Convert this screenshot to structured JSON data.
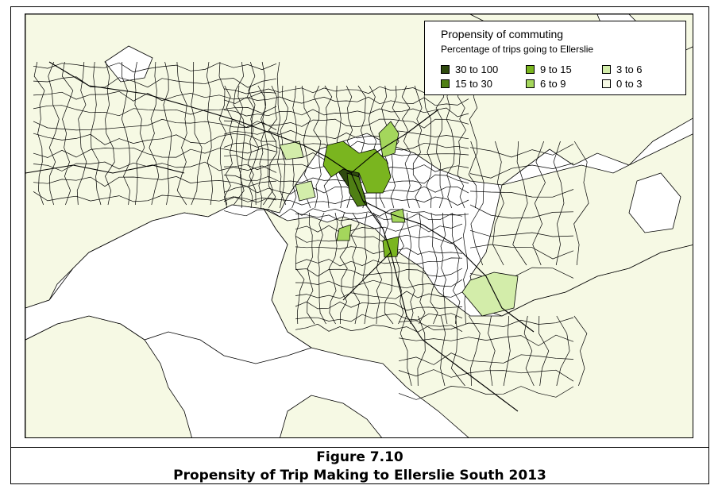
{
  "figure": {
    "number_label": "Figure 7.10",
    "title": "Propensity of Trip Making to Ellerslie South 2013"
  },
  "legend": {
    "title": "Propensity of commuting",
    "subtitle": "Percentage of trips going to Ellerslie",
    "classes": [
      {
        "label": "30 to 100",
        "color": "#2f4a0f"
      },
      {
        "label": "15 to   30",
        "color": "#4f7f14"
      },
      {
        "label": "9 to 15",
        "color": "#7ab51f"
      },
      {
        "label": "6 to   9",
        "color": "#a4d65c"
      },
      {
        "label": "3 to 6",
        "color": "#d3edaa"
      },
      {
        "label": "0 to 3",
        "color": "#f6f9e4"
      }
    ]
  },
  "map": {
    "land_color": "#f6f9e4",
    "water_color": "#ffffff",
    "boundary_color": "#000000"
  }
}
